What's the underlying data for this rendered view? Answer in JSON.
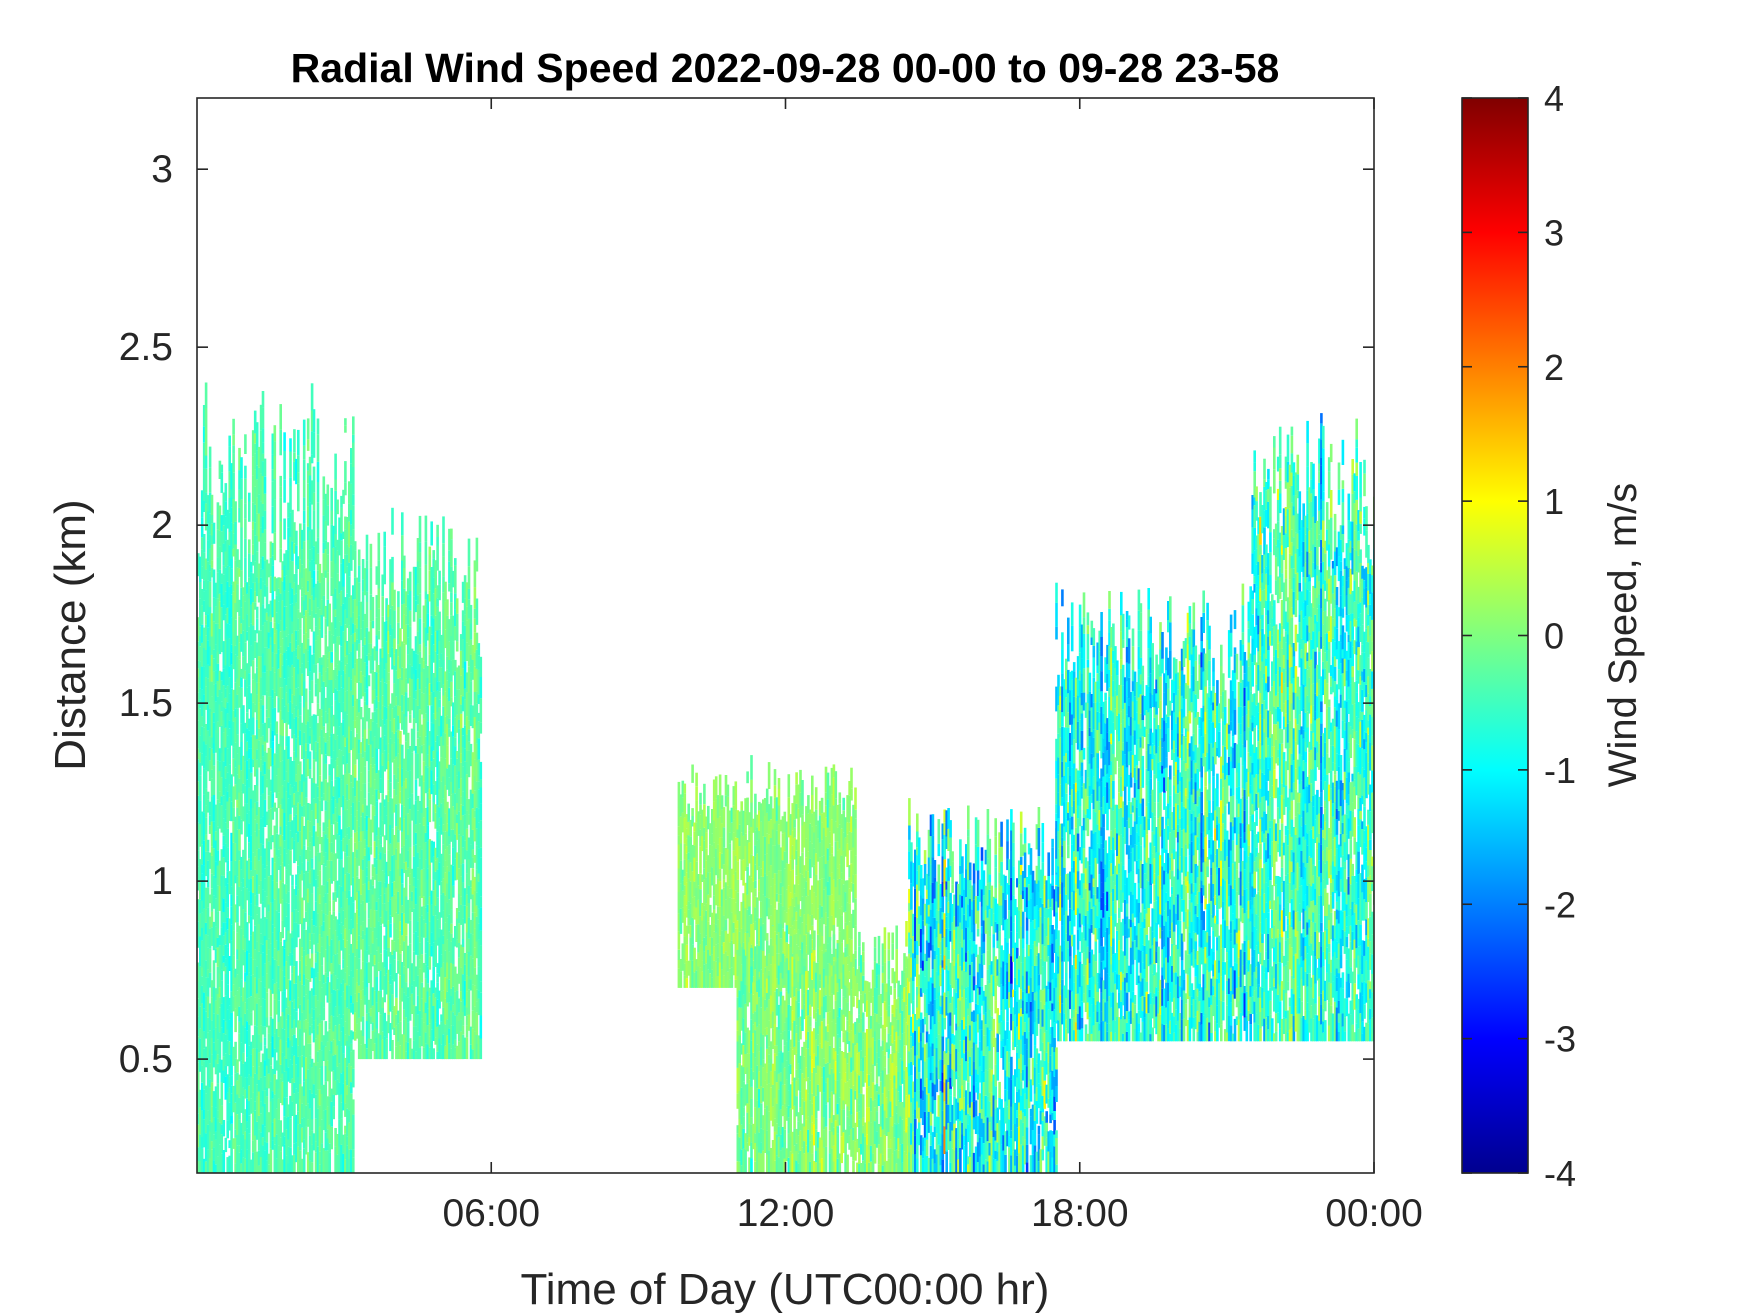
{
  "chart_data": {
    "type": "heatmap",
    "title": "Radial Wind Speed 2022-09-28 00-00 to 09-28 23-58",
    "xlabel": "Time of Day (UTC00:00 hr)",
    "ylabel": "Distance (km)",
    "x_unit": "hours",
    "xlim": [
      0,
      24
    ],
    "ylim": [
      0.18,
      3.2
    ],
    "x_ticks": [
      {
        "value": 6,
        "label": "06:00"
      },
      {
        "value": 12,
        "label": "12:00"
      },
      {
        "value": 18,
        "label": "18:00"
      },
      {
        "value": 24,
        "label": "00:00"
      }
    ],
    "y_ticks": [
      {
        "value": 0.5,
        "label": "0.5"
      },
      {
        "value": 1,
        "label": "1"
      },
      {
        "value": 1.5,
        "label": "1.5"
      },
      {
        "value": 2,
        "label": "2"
      },
      {
        "value": 2.5,
        "label": "2.5"
      },
      {
        "value": 3,
        "label": "3"
      }
    ],
    "colorbar": {
      "label": "Wind Speed, m/s",
      "colormap": "jet",
      "clim": [
        -4,
        4
      ],
      "ticks": [
        {
          "value": 4,
          "label": "4"
        },
        {
          "value": 3,
          "label": "3"
        },
        {
          "value": 2,
          "label": "2"
        },
        {
          "value": 1,
          "label": "1"
        },
        {
          "value": 0,
          "label": "0"
        },
        {
          "value": -1,
          "label": "-1"
        },
        {
          "value": -2,
          "label": "-2"
        },
        {
          "value": -3,
          "label": "-3"
        },
        {
          "value": -4,
          "label": "-4"
        }
      ]
    },
    "grid": false,
    "data_regions": [
      {
        "t0": 0.0,
        "t1": 3.2,
        "d0": 0.18,
        "d1": 2.35,
        "mean": -0.4,
        "spread": 0.35
      },
      {
        "t0": 3.2,
        "t1": 5.8,
        "d0": 0.5,
        "d1": 2.0,
        "mean": -0.3,
        "spread": 0.35
      },
      {
        "t0": 9.8,
        "t1": 13.4,
        "d0": 0.7,
        "d1": 1.3,
        "mean": 0.1,
        "spread": 0.35
      },
      {
        "t0": 11.0,
        "t1": 14.5,
        "d0": 0.18,
        "d1": 0.85,
        "mean": 0.0,
        "spread": 0.5
      },
      {
        "t0": 14.5,
        "t1": 17.5,
        "d0": 0.18,
        "d1": 1.2,
        "mean": -0.8,
        "spread": 1.2
      },
      {
        "t0": 17.5,
        "t1": 21.5,
        "d0": 0.55,
        "d1": 1.8,
        "mean": -0.7,
        "spread": 1.0
      },
      {
        "t0": 21.5,
        "t1": 24.0,
        "d0": 0.55,
        "d1": 2.3,
        "mean": -0.6,
        "spread": 0.9
      }
    ]
  }
}
